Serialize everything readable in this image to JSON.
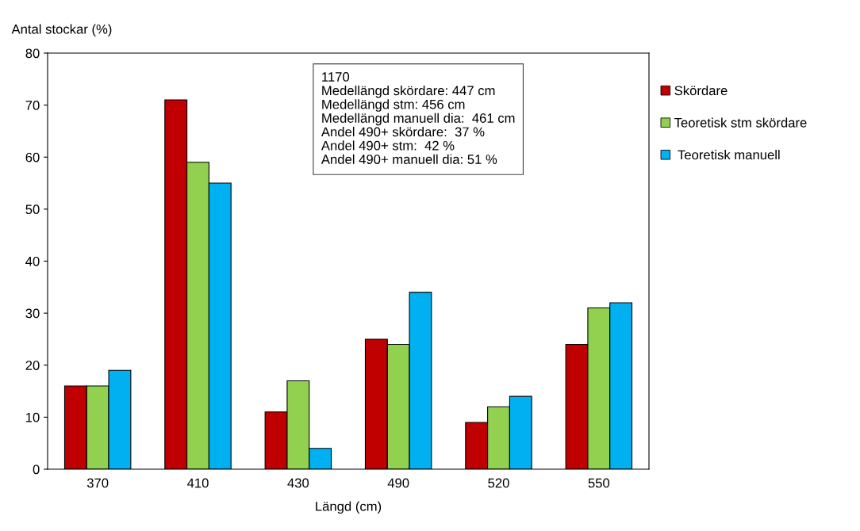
{
  "chart_data": {
    "type": "bar",
    "ylabel": "Antal stockar (%)",
    "xlabel": "Längd (cm)",
    "categories": [
      "370",
      "410",
      "430",
      "490",
      "520",
      "550"
    ],
    "series": [
      {
        "name": "Skördare",
        "color": "#c00000",
        "values": [
          16,
          71,
          11,
          25,
          9,
          24
        ]
      },
      {
        "name": "Teoretisk stm skördare",
        "color": "#92d050",
        "values": [
          16,
          59,
          17,
          24,
          12,
          31
        ]
      },
      {
        "name": " Teoretisk manuell",
        "color": "#00b0f0",
        "values": [
          19,
          55,
          4,
          34,
          14,
          32
        ]
      }
    ],
    "ylim": [
      0,
      80
    ],
    "yticks": [
      0,
      10,
      20,
      30,
      40,
      50,
      60,
      70,
      80
    ],
    "grid": false,
    "legend": "right",
    "annotations": [
      "1170\nMedellängd skördare: 447 cm\nMedellängd stm: 456 cm\nMedellängd manuell dia:  461 cm\nAndel 490+ skördare:  37 %\nAndel 490+ stm:  42 %\nAndel 490+ manuell dia: 51 %"
    ]
  }
}
